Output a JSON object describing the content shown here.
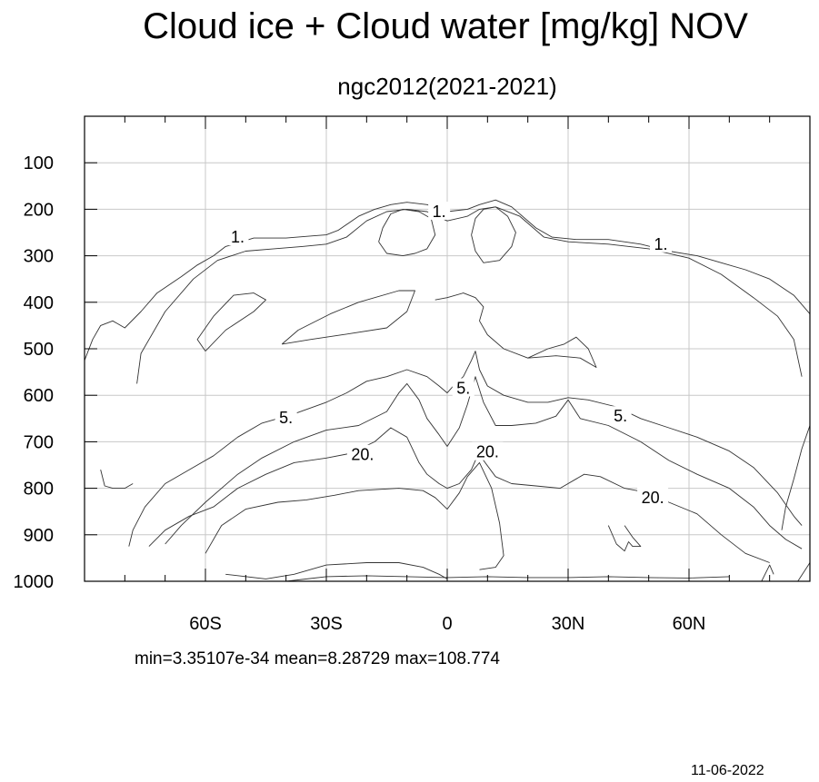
{
  "chart_data": {
    "type": "contour",
    "title": "Cloud ice + Cloud water [mg/kg] NOV",
    "subtitle": "ngc2012(2021-2021)",
    "stats": "min=3.35107e-34   mean=8.28729   max=108.774",
    "date": "11-06-2022",
    "grid": true,
    "x_range": [
      -90,
      90
    ],
    "x_ticks": [
      {
        "value": -60,
        "label": "60S"
      },
      {
        "value": -30,
        "label": "30S"
      },
      {
        "value": 0,
        "label": "0"
      },
      {
        "value": 30,
        "label": "30N"
      },
      {
        "value": 60,
        "label": "60N"
      }
    ],
    "x_minor_step": 10,
    "y_range": [
      0,
      1000
    ],
    "y_reversed": true,
    "y_ticks": [
      100,
      200,
      300,
      400,
      500,
      600,
      700,
      800,
      900,
      1000
    ],
    "contour_labels": [
      {
        "text": "1.",
        "x": -52,
        "y": 260
      },
      {
        "text": "1.",
        "x": -2,
        "y": 205
      },
      {
        "text": "1.",
        "x": 53,
        "y": 275
      },
      {
        "text": "5.",
        "x": -40,
        "y": 648
      },
      {
        "text": "5.",
        "x": 4,
        "y": 585
      },
      {
        "text": "5.",
        "x": 43,
        "y": 645
      },
      {
        "text": "20.",
        "x": -21,
        "y": 728
      },
      {
        "text": "20.",
        "x": 10,
        "y": 722
      },
      {
        "text": "20.",
        "x": 51,
        "y": 820
      }
    ],
    "contours": [
      {
        "level": "1.",
        "points": [
          [
            -90,
            525
          ],
          [
            -88,
            480
          ],
          [
            -86,
            450
          ],
          [
            -83,
            440
          ],
          [
            -80,
            455
          ],
          [
            -76,
            420
          ],
          [
            -72,
            380
          ],
          [
            -66,
            345
          ],
          [
            -62,
            320
          ],
          [
            -58,
            300
          ],
          [
            -55,
            280
          ],
          [
            -48,
            262
          ],
          [
            -40,
            262
          ],
          [
            -33,
            257
          ],
          [
            -30,
            255
          ],
          [
            -27,
            245
          ],
          [
            -22,
            215
          ],
          [
            -18,
            200
          ],
          [
            -14,
            190
          ],
          [
            -10,
            185
          ],
          [
            -5,
            190
          ],
          [
            0,
            205
          ],
          [
            5,
            200
          ],
          [
            8,
            190
          ],
          [
            12,
            180
          ],
          [
            16,
            195
          ],
          [
            22,
            240
          ],
          [
            26,
            260
          ],
          [
            32,
            265
          ],
          [
            40,
            265
          ],
          [
            48,
            275
          ],
          [
            55,
            290
          ],
          [
            62,
            300
          ],
          [
            68,
            315
          ],
          [
            74,
            330
          ],
          [
            80,
            350
          ],
          [
            86,
            385
          ],
          [
            90,
            425
          ]
        ]
      },
      {
        "level": "1.",
        "points": [
          [
            -77,
            575
          ],
          [
            -76,
            510
          ],
          [
            -70,
            420
          ],
          [
            -63,
            350
          ],
          [
            -57,
            310
          ],
          [
            -50,
            290
          ],
          [
            -43,
            285
          ],
          [
            -36,
            280
          ],
          [
            -30,
            275
          ],
          [
            -25,
            260
          ],
          [
            -20,
            225
          ],
          [
            -15,
            205
          ],
          [
            -10,
            200
          ],
          [
            -5,
            205
          ],
          [
            0,
            225
          ],
          [
            5,
            215
          ],
          [
            8,
            200
          ],
          [
            12,
            195
          ],
          [
            18,
            215
          ],
          [
            24,
            260
          ],
          [
            30,
            270
          ],
          [
            40,
            275
          ],
          [
            50,
            285
          ],
          [
            60,
            305
          ],
          [
            68,
            340
          ],
          [
            76,
            390
          ],
          [
            82,
            430
          ],
          [
            86,
            480
          ],
          [
            88,
            560
          ]
        ]
      },
      {
        "level": "1.",
        "points": [
          [
            -60,
            505
          ],
          [
            -62,
            480
          ],
          [
            -58,
            430
          ],
          [
            -53,
            385
          ],
          [
            -48,
            380
          ],
          [
            -45,
            395
          ],
          [
            -48,
            420
          ],
          [
            -55,
            460
          ],
          [
            -60,
            505
          ]
        ]
      },
      {
        "level": "1.",
        "points": [
          [
            -41,
            490
          ],
          [
            -37,
            460
          ],
          [
            -29,
            425
          ],
          [
            -22,
            400
          ],
          [
            -12,
            375
          ],
          [
            -8,
            375
          ],
          [
            -10,
            420
          ],
          [
            -15,
            455
          ],
          [
            -26,
            470
          ],
          [
            -34,
            480
          ],
          [
            -41,
            490
          ]
        ]
      },
      {
        "level": "1.",
        "points": [
          [
            -17,
            270
          ],
          [
            -16,
            240
          ],
          [
            -14,
            210
          ],
          [
            -11,
            200
          ],
          [
            -7,
            205
          ],
          [
            -4,
            220
          ],
          [
            -3,
            255
          ],
          [
            -5,
            285
          ],
          [
            -8,
            295
          ],
          [
            -11,
            300
          ],
          [
            -15,
            295
          ],
          [
            -17,
            270
          ]
        ]
      },
      {
        "level": "1.",
        "points": [
          [
            6,
            255
          ],
          [
            7,
            220
          ],
          [
            9,
            200
          ],
          [
            12,
            195
          ],
          [
            15,
            215
          ],
          [
            17,
            250
          ],
          [
            16,
            280
          ],
          [
            13,
            310
          ],
          [
            9,
            315
          ],
          [
            7,
            290
          ],
          [
            6,
            255
          ]
        ]
      },
      {
        "level": "1.",
        "points": [
          [
            -3,
            395
          ],
          [
            0,
            390
          ],
          [
            4,
            380
          ],
          [
            7,
            390
          ],
          [
            9,
            410
          ],
          [
            8,
            440
          ],
          [
            10,
            470
          ],
          [
            14,
            500
          ],
          [
            20,
            520
          ],
          [
            25,
            500
          ],
          [
            29,
            490
          ],
          [
            32,
            475
          ],
          [
            35,
            500
          ],
          [
            37,
            540
          ],
          [
            33,
            520
          ],
          [
            27,
            515
          ],
          [
            20,
            520
          ]
        ]
      },
      {
        "level": "5.",
        "points": [
          [
            -79,
            925
          ],
          [
            -78,
            890
          ],
          [
            -75,
            840
          ],
          [
            -70,
            790
          ],
          [
            -64,
            760
          ],
          [
            -58,
            730
          ],
          [
            -52,
            690
          ],
          [
            -46,
            660
          ],
          [
            -38,
            640
          ],
          [
            -30,
            615
          ],
          [
            -25,
            595
          ],
          [
            -20,
            570
          ],
          [
            -15,
            560
          ],
          [
            -10,
            545
          ],
          [
            -5,
            560
          ],
          [
            -2,
            580
          ],
          [
            0,
            595
          ],
          [
            2,
            575
          ],
          [
            4,
            560
          ],
          [
            6,
            525
          ],
          [
            7,
            505
          ],
          [
            8,
            545
          ],
          [
            10,
            580
          ],
          [
            14,
            600
          ],
          [
            20,
            615
          ],
          [
            25,
            615
          ],
          [
            30,
            605
          ],
          [
            35,
            610
          ],
          [
            42,
            625
          ],
          [
            48,
            650
          ],
          [
            55,
            670
          ],
          [
            62,
            690
          ],
          [
            70,
            720
          ],
          [
            76,
            755
          ],
          [
            82,
            810
          ],
          [
            86,
            860
          ],
          [
            88,
            880
          ]
        ]
      },
      {
        "level": "5.",
        "points": [
          [
            -70,
            920
          ],
          [
            -66,
            880
          ],
          [
            -60,
            830
          ],
          [
            -52,
            770
          ],
          [
            -46,
            735
          ],
          [
            -38,
            700
          ],
          [
            -30,
            675
          ],
          [
            -22,
            665
          ],
          [
            -15,
            635
          ],
          [
            -12,
            595
          ],
          [
            -10,
            575
          ],
          [
            -7,
            610
          ],
          [
            -5,
            650
          ],
          [
            -2,
            685
          ],
          [
            0,
            710
          ],
          [
            3,
            670
          ],
          [
            5,
            620
          ],
          [
            7,
            560
          ],
          [
            9,
            615
          ],
          [
            12,
            665
          ],
          [
            16,
            665
          ],
          [
            22,
            660
          ],
          [
            27,
            645
          ],
          [
            30,
            610
          ],
          [
            33,
            650
          ],
          [
            40,
            665
          ],
          [
            48,
            700
          ],
          [
            55,
            740
          ],
          [
            62,
            770
          ],
          [
            70,
            800
          ],
          [
            76,
            840
          ],
          [
            80,
            880
          ],
          [
            84,
            910
          ],
          [
            88,
            930
          ]
        ]
      },
      {
        "level": "20.",
        "points": [
          [
            -74,
            925
          ],
          [
            -70,
            890
          ],
          [
            -64,
            860
          ],
          [
            -58,
            840
          ],
          [
            -52,
            800
          ],
          [
            -45,
            770
          ],
          [
            -38,
            745
          ],
          [
            -30,
            735
          ],
          [
            -24,
            725
          ],
          [
            -18,
            700
          ],
          [
            -14,
            670
          ],
          [
            -10,
            690
          ],
          [
            -7,
            745
          ],
          [
            -5,
            770
          ],
          [
            -2,
            790
          ],
          [
            0,
            800
          ],
          [
            3,
            790
          ],
          [
            6,
            760
          ],
          [
            8,
            720
          ],
          [
            9,
            740
          ],
          [
            12,
            775
          ],
          [
            16,
            790
          ],
          [
            22,
            795
          ],
          [
            28,
            800
          ],
          [
            34,
            770
          ],
          [
            38,
            775
          ],
          [
            44,
            800
          ],
          [
            50,
            810
          ],
          [
            55,
            830
          ],
          [
            62,
            855
          ],
          [
            68,
            900
          ],
          [
            74,
            940
          ],
          [
            80,
            960
          ]
        ]
      },
      {
        "level": "20.",
        "points": [
          [
            -60,
            940
          ],
          [
            -56,
            880
          ],
          [
            -50,
            845
          ],
          [
            -42,
            830
          ],
          [
            -35,
            825
          ],
          [
            -28,
            815
          ],
          [
            -22,
            805
          ],
          [
            -12,
            800
          ],
          [
            -6,
            805
          ],
          [
            -3,
            820
          ],
          [
            0,
            845
          ],
          [
            3,
            810
          ],
          [
            5,
            775
          ],
          [
            6,
            765
          ],
          [
            8,
            745
          ],
          [
            11,
            800
          ],
          [
            13,
            875
          ],
          [
            14,
            945
          ],
          [
            12,
            970
          ],
          [
            8,
            975
          ]
        ]
      },
      {
        "level": "20.",
        "points": [
          [
            -55,
            985
          ],
          [
            -45,
            995
          ],
          [
            -38,
            985
          ],
          [
            -30,
            965
          ],
          [
            -20,
            960
          ],
          [
            -12,
            960
          ],
          [
            -6,
            970
          ],
          [
            -2,
            985
          ],
          [
            0,
            995
          ]
        ]
      },
      {
        "level": "20.",
        "points": [
          [
            -40,
            1000
          ],
          [
            -30,
            990
          ],
          [
            -20,
            988
          ],
          [
            -10,
            990
          ],
          [
            0,
            992
          ],
          [
            10,
            990
          ],
          [
            20,
            992
          ],
          [
            30,
            992
          ],
          [
            40,
            990
          ],
          [
            50,
            992
          ],
          [
            60,
            993
          ],
          [
            70,
            990
          ]
        ]
      },
      {
        "level": "20.",
        "points": [
          [
            40,
            880
          ],
          [
            42,
            920
          ],
          [
            44,
            935
          ],
          [
            45,
            915
          ],
          [
            46,
            925
          ],
          [
            48,
            925
          ],
          [
            46,
            905
          ],
          [
            44,
            880
          ]
        ]
      },
      {
        "level": "20.",
        "points": [
          [
            83,
            890
          ],
          [
            84,
            840
          ],
          [
            86,
            780
          ],
          [
            88,
            715
          ],
          [
            90,
            665
          ]
        ]
      },
      {
        "level": "20.",
        "points": [
          [
            78,
            1000
          ],
          [
            80,
            965
          ],
          [
            81,
            985
          ]
        ]
      },
      {
        "level": "20.",
        "points": [
          [
            87,
            1000
          ],
          [
            90,
            960
          ]
        ]
      },
      {
        "level": "20.",
        "points": [
          [
            -86,
            760
          ],
          [
            -85,
            795
          ],
          [
            -83,
            800
          ],
          [
            -80,
            800
          ],
          [
            -78,
            790
          ]
        ]
      }
    ]
  }
}
